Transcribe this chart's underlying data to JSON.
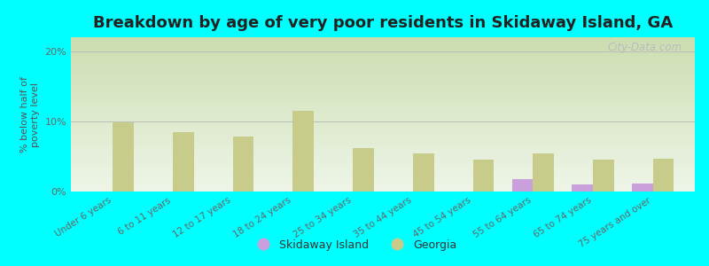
{
  "title": "Breakdown by age of very poor residents in Skidaway Island, GA",
  "ylabel": "% below half of\npoverty level",
  "categories": [
    "Under 6 years",
    "6 to 11 years",
    "12 to 17 years",
    "18 to 24 years",
    "25 to 34 years",
    "35 to 44 years",
    "45 to 54 years",
    "55 to 64 years",
    "65 to 74 years",
    "75 years and over"
  ],
  "skidaway_values": [
    0,
    0,
    0,
    0,
    0,
    0,
    0,
    1.8,
    1.0,
    1.1
  ],
  "georgia_values": [
    9.8,
    8.5,
    7.9,
    11.5,
    6.2,
    5.5,
    4.5,
    5.4,
    4.6,
    4.7
  ],
  "skidaway_color": "#c9a0dc",
  "georgia_color": "#c8cc8a",
  "background_color": "#00ffff",
  "plot_bg_top_color": "#ccddb0",
  "plot_bg_bottom_color": "#eef5e8",
  "ylim": [
    0,
    22
  ],
  "yticks": [
    0,
    10,
    20
  ],
  "ytick_labels": [
    "0%",
    "10%",
    "20%"
  ],
  "bar_width": 0.35,
  "title_fontsize": 13,
  "legend_labels": [
    "Skidaway Island",
    "Georgia"
  ],
  "watermark": "City-Data.com"
}
